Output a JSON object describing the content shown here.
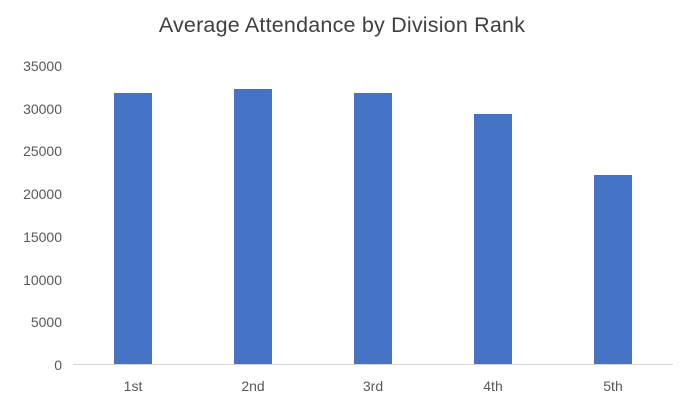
{
  "chart_data": {
    "type": "bar",
    "title": "Average Attendance by Division Rank",
    "categories": [
      "1st",
      "2nd",
      "3rd",
      "4th",
      "5th"
    ],
    "values": [
      31800,
      32300,
      31800,
      29400,
      22200
    ],
    "xlabel": "",
    "ylabel": "",
    "ylim": [
      0,
      35000
    ],
    "y_ticks": [
      0,
      5000,
      10000,
      15000,
      20000,
      25000,
      30000,
      35000
    ],
    "grid": false,
    "legend": false,
    "colors": {
      "bar": "#4472C4",
      "title_text": "#404040",
      "tick_text": "#595959",
      "axis_line": "#D6D6D6",
      "background": "#FFFFFF"
    }
  }
}
